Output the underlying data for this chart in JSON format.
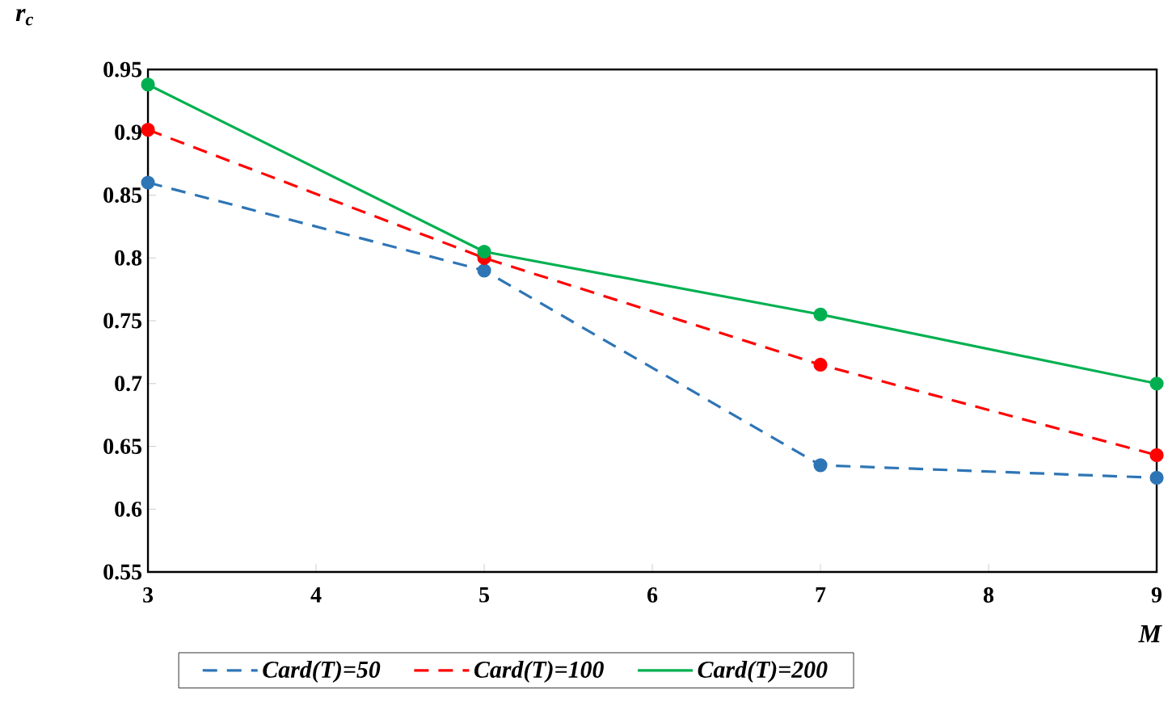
{
  "chart_data": {
    "type": "line",
    "xlabel": "M",
    "ylabel": "r$_{c}$",
    "x": [
      3,
      5,
      7,
      9
    ],
    "series": [
      {
        "name": "Card(T)=50",
        "color": "#2e75b6",
        "line_style": "dashed",
        "values": [
          0.86,
          0.79,
          0.635,
          0.625
        ]
      },
      {
        "name": "Card(T)=100",
        "color": "#ff0000",
        "line_style": "dashed",
        "values": [
          0.902,
          0.8,
          0.715,
          0.643
        ]
      },
      {
        "name": "Card(T)=200",
        "color": "#00b050",
        "line_style": "solid",
        "values": [
          0.938,
          0.805,
          0.755,
          0.7
        ]
      }
    ],
    "xlim": [
      3,
      9
    ],
    "xticks": [
      3,
      4,
      5,
      6,
      7,
      8,
      9
    ],
    "ylim": [
      0.55,
      0.95
    ],
    "yticks": [
      0.55,
      0.6,
      0.65,
      0.7,
      0.75,
      0.8,
      0.85,
      0.9,
      0.95
    ],
    "marker": "circle",
    "legend": "bottom",
    "grid": false
  }
}
